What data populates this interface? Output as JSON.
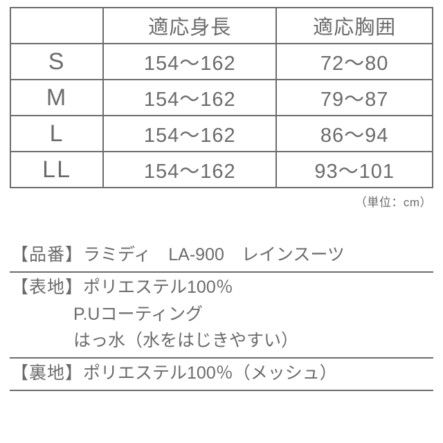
{
  "table": {
    "headers": {
      "size": "",
      "height": "適応身長",
      "chest": "適応胸囲"
    },
    "rows": [
      {
        "size": "S",
        "height": "154～162",
        "chest": "72～80"
      },
      {
        "size": "M",
        "height": "154～162",
        "chest": "79～87"
      },
      {
        "size": "L",
        "height": "154～162",
        "chest": "86～94"
      },
      {
        "size": "LL",
        "height": "154～162",
        "chest": "93～101"
      }
    ],
    "unit_note": "（単位：cm）"
  },
  "spec": {
    "product": {
      "label": "【品番】",
      "value": "ラミディ　LA-900　レインスーツ"
    },
    "outer": {
      "label": "【表地】",
      "line1": "ポリエステル100％",
      "line2": "P.Uコーティング",
      "line3": "はっ水（水をはじきやすい）"
    },
    "lining": {
      "label": "【裏地】",
      "value": "ポリエステル100％（メッシュ）"
    }
  },
  "style": {
    "text_color": "#6b6b6b",
    "border_color": "#6b6b6b",
    "background": "#ffffff",
    "table_font_size": 29,
    "size_cell_font_size": 34,
    "spec_font_size": 25,
    "unit_font_size": 17
  }
}
